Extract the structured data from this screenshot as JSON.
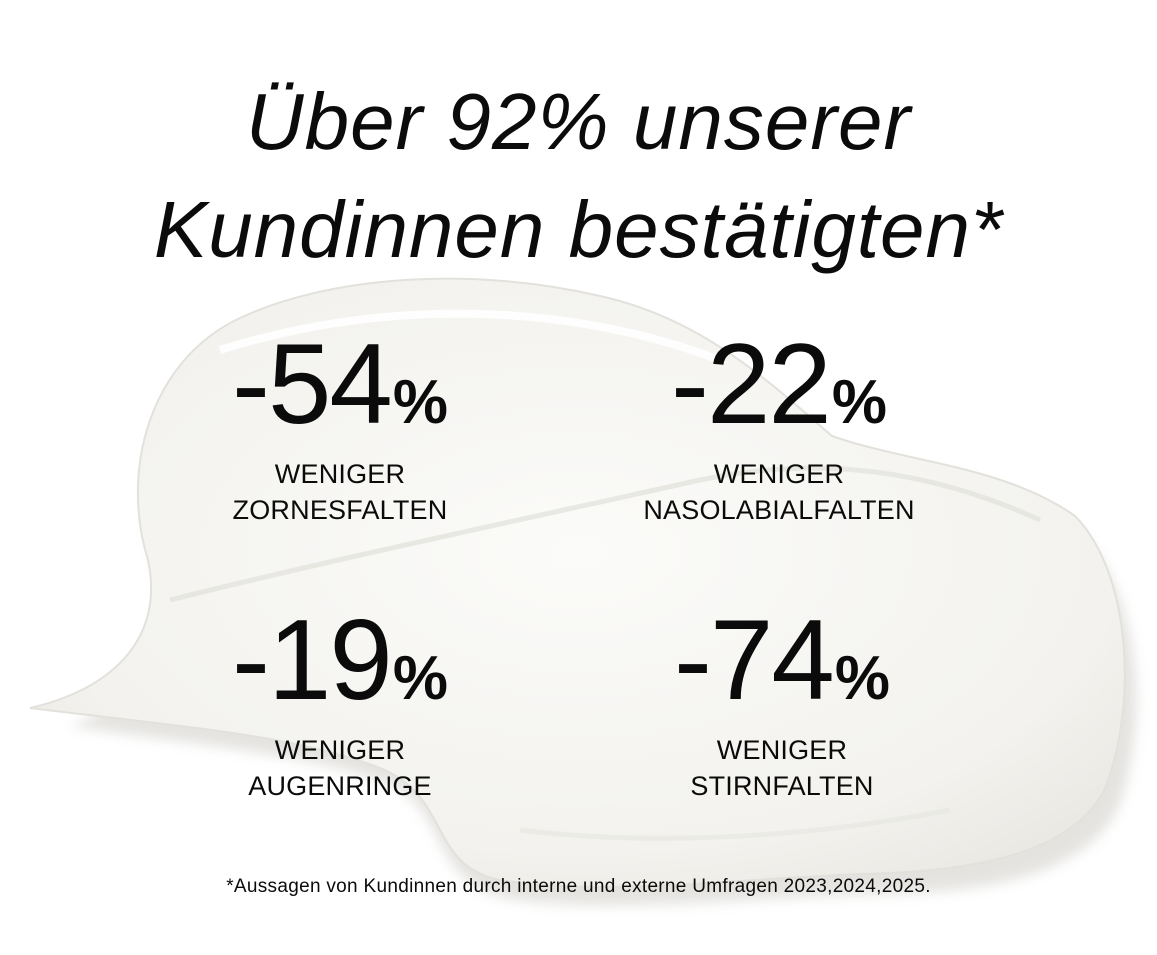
{
  "headline": {
    "line1": "Über 92% unserer",
    "line2": "Kundinnen bestätigten*"
  },
  "stats": [
    {
      "value": "-54",
      "unit": "%",
      "label_line1": "WENIGER",
      "label_line2": "ZORNESFALTEN"
    },
    {
      "value": "-22",
      "unit": "%",
      "label_line1": "WENIGER",
      "label_line2": "NASOLABIALFALTEN"
    },
    {
      "value": "-19",
      "unit": "%",
      "label_line1": "WENIGER",
      "label_line2": "AUGENRINGE"
    },
    {
      "value": "-74",
      "unit": "%",
      "label_line1": "WENIGER",
      "label_line2": "STIRNFALTEN"
    }
  ],
  "footnote": "*Aussagen von Kundinnen durch interne und externe Umfragen 2023,2024,2025.",
  "colors": {
    "background": "#ffffff",
    "text": "#0b0b0b",
    "cream": "#f4f3ef",
    "cream_shadow": "#d9d8d3"
  }
}
